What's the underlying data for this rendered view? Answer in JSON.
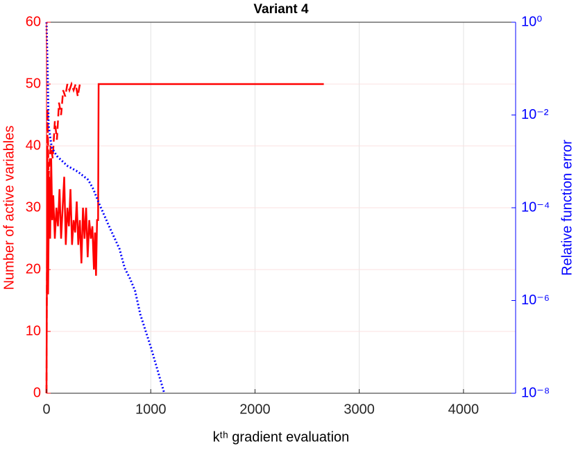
{
  "chart_data": {
    "type": "line",
    "title": "Variant 4",
    "xlabel": "kᵗʰ gradient evaluation",
    "ylabel": "Number of active variables",
    "y2label": "Relative function error",
    "xlim": [
      0,
      4500
    ],
    "xticks": [
      0,
      1000,
      2000,
      3000,
      4000
    ],
    "ylim": [
      0,
      60
    ],
    "yticks": [
      0,
      10,
      20,
      30,
      40,
      50,
      60
    ],
    "y2lim": [
      1e-08,
      1
    ],
    "y2scale": "log",
    "y2ticks": [
      {
        "value": 1,
        "label": "10⁰"
      },
      {
        "value": 0.01,
        "label": "10⁻²"
      },
      {
        "value": 0.0001,
        "label": "10⁻⁴"
      },
      {
        "value": 1e-06,
        "label": "10⁻⁶"
      },
      {
        "value": 1e-08,
        "label": "10⁻⁸"
      }
    ],
    "ycolor": "#ff0000",
    "y2color": "#0000ff",
    "xgrid": true,
    "ygrid": true,
    "series": [
      {
        "color": "#ff0000",
        "style": "solid",
        "x": [
          0,
          8,
          15,
          25,
          35,
          45,
          55,
          65,
          80,
          95,
          110,
          125,
          140,
          155,
          170,
          185,
          200,
          215,
          230,
          245,
          260,
          275,
          290,
          305,
          320,
          335,
          350,
          365,
          380,
          395,
          410,
          425,
          440,
          455,
          465,
          475,
          485,
          495,
          500,
          2660
        ],
        "values": [
          0,
          40,
          16,
          35,
          25,
          38,
          28,
          32,
          25,
          30,
          27,
          33,
          25,
          30,
          35,
          24,
          30,
          27,
          33,
          24,
          28,
          26,
          31,
          24,
          28,
          21,
          30,
          25,
          30,
          22,
          28,
          25,
          27,
          20,
          26,
          19,
          28,
          28,
          50,
          50
        ]
      },
      {
        "color": "#ff0000",
        "style": "dashed",
        "x": [
          0,
          10,
          20,
          40,
          60,
          80,
          100,
          120,
          140,
          160,
          180,
          200,
          220,
          240,
          260,
          280,
          300,
          320,
          340
        ],
        "values": [
          0,
          46,
          35,
          40,
          38,
          44,
          41,
          47,
          45,
          49,
          48,
          50,
          49,
          50,
          49,
          50,
          48,
          50,
          50
        ]
      },
      {
        "color": "#0000ff",
        "style": "dotted",
        "axis": "y2",
        "x": [
          0,
          10,
          20,
          50,
          100,
          200,
          300,
          400,
          450,
          500,
          600,
          700,
          750,
          800,
          850,
          900,
          1000,
          1130
        ],
        "values": [
          1,
          0.1,
          0.006,
          0.002,
          0.0013,
          0.0008,
          0.0006,
          0.0004,
          0.00025,
          0.00013,
          4e-05,
          1.3e-05,
          5e-06,
          3e-06,
          1.6e-06,
          5e-07,
          1e-07,
          1e-08
        ]
      }
    ]
  }
}
